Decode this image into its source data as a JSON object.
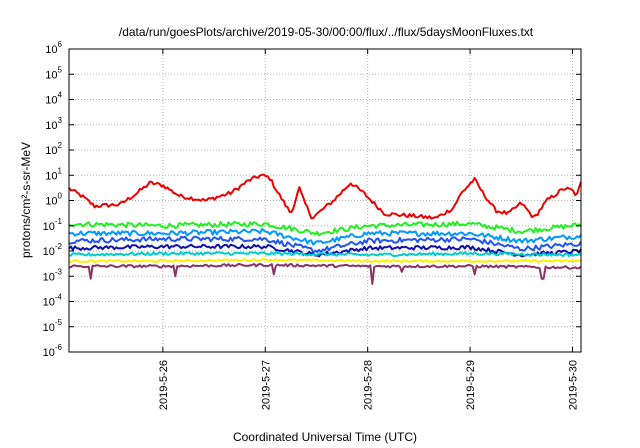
{
  "chart_data": {
    "type": "line",
    "title": "/data/run/goesPlots/archive/2019-05-30/00:00/flux/../flux/5daysMoonFluxes.txt",
    "xlabel": "Coordinated Universal Time (UTC)",
    "ylabel": "protons/cm²-s-sr-MeV",
    "yscale": "log",
    "ylim": [
      1e-06,
      1000000.0
    ],
    "xlim": [
      "2019-05-25T02:00",
      "2019-05-30T02:00"
    ],
    "y_ticks": [
      {
        "value": 1e-06,
        "base": "10",
        "exp": "-6"
      },
      {
        "value": 1e-05,
        "base": "10",
        "exp": "-5"
      },
      {
        "value": 0.0001,
        "base": "10",
        "exp": "-4"
      },
      {
        "value": 0.001,
        "base": "10",
        "exp": "-3"
      },
      {
        "value": 0.01,
        "base": "10",
        "exp": "-2"
      },
      {
        "value": 0.1,
        "base": "10",
        "exp": "-1"
      },
      {
        "value": 1,
        "base": "10",
        "exp": "0"
      },
      {
        "value": 10,
        "base": "10",
        "exp": "1"
      },
      {
        "value": 100,
        "base": "10",
        "exp": "2"
      },
      {
        "value": 1000,
        "base": "10",
        "exp": "3"
      },
      {
        "value": 10000,
        "base": "10",
        "exp": "4"
      },
      {
        "value": 100000,
        "base": "10",
        "exp": "5"
      },
      {
        "value": 1000000,
        "base": "10",
        "exp": "6"
      }
    ],
    "x_ticks": [
      {
        "value": "2019-05-26T00:00",
        "label": "2019-5-26"
      },
      {
        "value": "2019-05-27T00:00",
        "label": "2019-5-27"
      },
      {
        "value": "2019-05-28T00:00",
        "label": "2019-5-28"
      },
      {
        "value": "2019-05-29T00:00",
        "label": "2019-5-29"
      },
      {
        "value": "2019-05-30T00:00",
        "label": "2019-5-30"
      }
    ],
    "grid": true,
    "series": [
      {
        "color": "#ee0000",
        "noise": 0.08,
        "points": [
          [
            "2019-05-25T02:00",
            3
          ],
          [
            "2019-05-25T05:00",
            1.5
          ],
          [
            "2019-05-25T08:00",
            0.6
          ],
          [
            "2019-05-25T14:00",
            0.7
          ],
          [
            "2019-05-25T18:00",
            2
          ],
          [
            "2019-05-25T21:00",
            5
          ],
          [
            "2019-05-26T00:00",
            4
          ],
          [
            "2019-05-26T04:00",
            1.5
          ],
          [
            "2019-05-26T10:00",
            1
          ],
          [
            "2019-05-26T16:00",
            2
          ],
          [
            "2019-05-26T20:00",
            6
          ],
          [
            "2019-05-26T23:00",
            10
          ],
          [
            "2019-05-27T01:00",
            8
          ],
          [
            "2019-05-27T03:00",
            2
          ],
          [
            "2019-05-27T06:00",
            0.3
          ],
          [
            "2019-05-27T08:00",
            3
          ],
          [
            "2019-05-27T09:00",
            1
          ],
          [
            "2019-05-27T11:00",
            0.2
          ],
          [
            "2019-05-27T16:00",
            1
          ],
          [
            "2019-05-27T20:00",
            5
          ],
          [
            "2019-05-27T23:00",
            2
          ],
          [
            "2019-05-28T04:00",
            0.3
          ],
          [
            "2019-05-28T10:00",
            0.25
          ],
          [
            "2019-05-28T16:00",
            0.2
          ],
          [
            "2019-05-28T20:00",
            0.5
          ],
          [
            "2019-05-28T22:00",
            2
          ],
          [
            "2019-05-29T01:00",
            7
          ],
          [
            "2019-05-29T03:00",
            2
          ],
          [
            "2019-05-29T06:00",
            0.4
          ],
          [
            "2019-05-29T09:00",
            0.3
          ],
          [
            "2019-05-29T12:00",
            0.8
          ],
          [
            "2019-05-29T15:00",
            0.2
          ],
          [
            "2019-05-29T18:00",
            1
          ],
          [
            "2019-05-29T22:00",
            3
          ],
          [
            "2019-05-30T00:00",
            2.5
          ],
          [
            "2019-05-30T01:00",
            1.5
          ],
          [
            "2019-05-30T02:00",
            5
          ]
        ]
      },
      {
        "color": "#22ee22",
        "noise": 0.1,
        "points": [
          [
            "2019-05-25T02:00",
            0.12
          ],
          [
            "2019-05-26T00:00",
            0.1
          ],
          [
            "2019-05-27T00:00",
            0.12
          ],
          [
            "2019-05-27T12:00",
            0.05
          ],
          [
            "2019-05-28T00:00",
            0.1
          ],
          [
            "2019-05-29T00:00",
            0.12
          ],
          [
            "2019-05-29T12:00",
            0.06
          ],
          [
            "2019-05-30T02:00",
            0.11
          ]
        ]
      },
      {
        "color": "#0099ff",
        "noise": 0.1,
        "points": [
          [
            "2019-05-25T02:00",
            0.05
          ],
          [
            "2019-05-26T00:00",
            0.05
          ],
          [
            "2019-05-27T00:00",
            0.06
          ],
          [
            "2019-05-27T12:00",
            0.02
          ],
          [
            "2019-05-28T00:00",
            0.05
          ],
          [
            "2019-05-29T00:00",
            0.05
          ],
          [
            "2019-05-29T12:00",
            0.025
          ],
          [
            "2019-05-30T02:00",
            0.04
          ]
        ]
      },
      {
        "color": "#2255ee",
        "noise": 0.1,
        "points": [
          [
            "2019-05-25T02:00",
            0.025
          ],
          [
            "2019-05-26T00:00",
            0.03
          ],
          [
            "2019-05-27T00:00",
            0.03
          ],
          [
            "2019-05-27T12:00",
            0.01
          ],
          [
            "2019-05-28T00:00",
            0.025
          ],
          [
            "2019-05-29T00:00",
            0.03
          ],
          [
            "2019-05-29T12:00",
            0.012
          ],
          [
            "2019-05-30T02:00",
            0.02
          ]
        ]
      },
      {
        "color": "#1111aa",
        "noise": 0.08,
        "points": [
          [
            "2019-05-25T02:00",
            0.013
          ],
          [
            "2019-05-26T00:00",
            0.015
          ],
          [
            "2019-05-27T00:00",
            0.015
          ],
          [
            "2019-05-27T12:00",
            0.007
          ],
          [
            "2019-05-28T00:00",
            0.013
          ],
          [
            "2019-05-29T00:00",
            0.014
          ],
          [
            "2019-05-29T12:00",
            0.007
          ],
          [
            "2019-05-30T02:00",
            0.01
          ]
        ]
      },
      {
        "color": "#00cccc",
        "noise": 0.06,
        "points": [
          [
            "2019-05-25T02:00",
            0.007
          ],
          [
            "2019-05-26T00:00",
            0.008
          ],
          [
            "2019-05-27T00:00",
            0.008
          ],
          [
            "2019-05-28T00:00",
            0.007
          ],
          [
            "2019-05-29T00:00",
            0.008
          ],
          [
            "2019-05-30T02:00",
            0.007
          ]
        ]
      },
      {
        "color": "#ffee00",
        "noise": 0.04,
        "points": [
          [
            "2019-05-25T02:00",
            0.004
          ],
          [
            "2019-05-26T00:00",
            0.004
          ],
          [
            "2019-05-27T00:00",
            0.0045
          ],
          [
            "2019-05-28T00:00",
            0.004
          ],
          [
            "2019-05-29T00:00",
            0.004
          ],
          [
            "2019-05-30T02:00",
            0.004
          ]
        ]
      },
      {
        "color": "#883366",
        "noise": 0.05,
        "dips": [
          [
            "2019-05-25T07:00",
            0.0008
          ],
          [
            "2019-05-26T03:00",
            0.001
          ],
          [
            "2019-05-27T02:00",
            0.0012
          ],
          [
            "2019-05-28T01:00",
            0.0005
          ],
          [
            "2019-05-28T08:00",
            0.0015
          ],
          [
            "2019-05-29T01:00",
            0.0012
          ],
          [
            "2019-05-29T17:00",
            0.0008
          ]
        ],
        "points": [
          [
            "2019-05-25T02:00",
            0.0025
          ],
          [
            "2019-05-26T00:00",
            0.0025
          ],
          [
            "2019-05-27T00:00",
            0.0028
          ],
          [
            "2019-05-28T00:00",
            0.0025
          ],
          [
            "2019-05-29T00:00",
            0.0025
          ],
          [
            "2019-05-30T02:00",
            0.0022
          ]
        ]
      }
    ]
  }
}
